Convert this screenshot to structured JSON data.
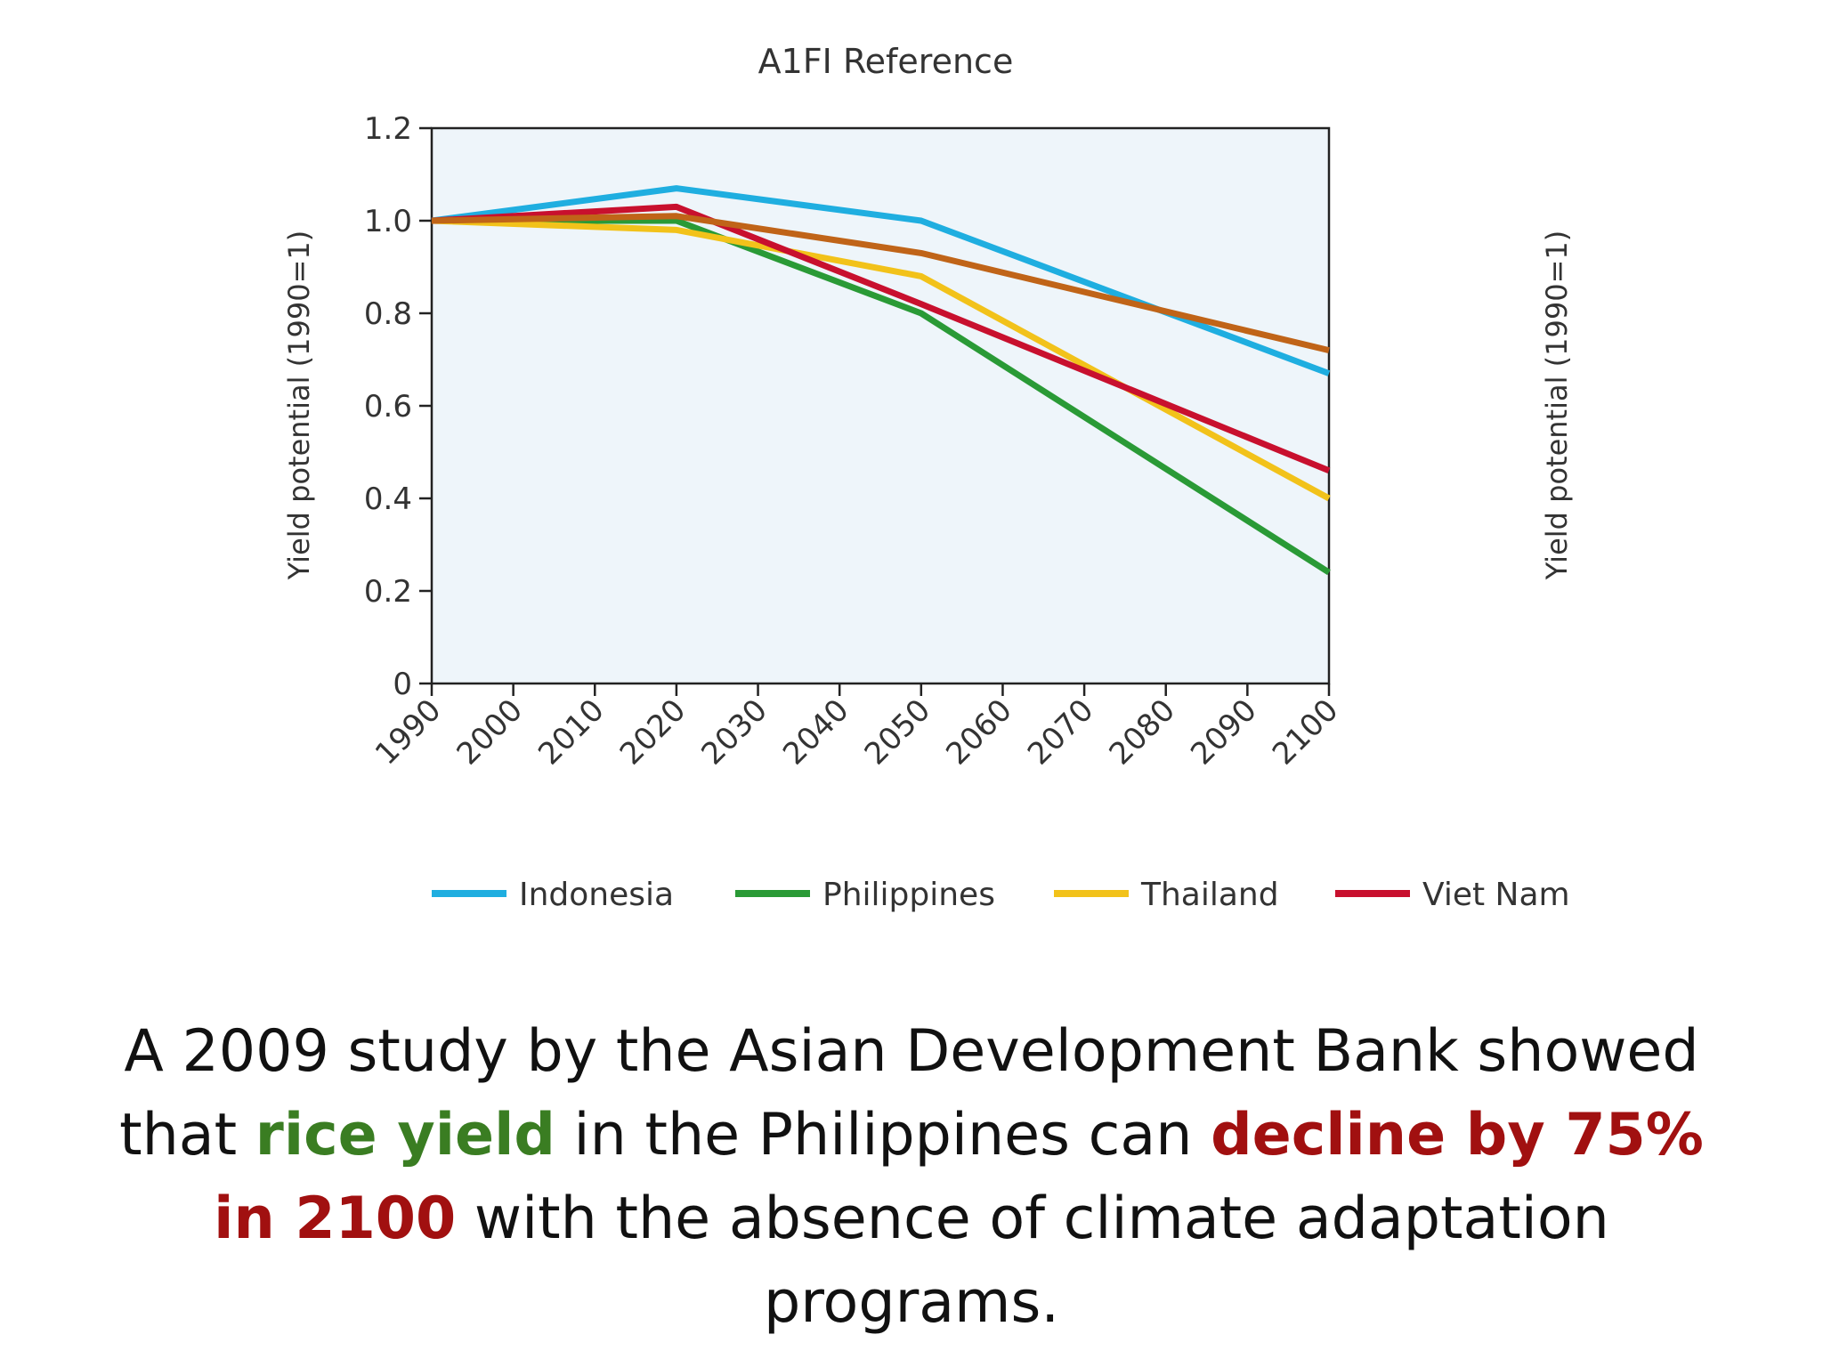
{
  "chart_data": {
    "type": "line",
    "title": "A1FI Reference",
    "ylabel": "Yield potential (1990=1)",
    "ylabel_right": "Yield potential (1990=1)",
    "xlabel": "",
    "x": [
      1990,
      2020,
      2050,
      2100
    ],
    "xticks": [
      "1990",
      "2000",
      "2010",
      "2020",
      "2030",
      "2040",
      "2050",
      "2060",
      "2070",
      "2080",
      "2090",
      "2100"
    ],
    "yticks": [
      "0",
      "0.2",
      "0.4",
      "0.6",
      "0.8",
      "1.0",
      "1.2"
    ],
    "xlim": [
      1990,
      2100
    ],
    "ylim": [
      0,
      1.2
    ],
    "grid": false,
    "legend": "bottom",
    "series": [
      {
        "name": "Indonesia",
        "color": "#1faee0",
        "values": [
          1.0,
          1.07,
          1.0,
          0.67
        ],
        "in_legend": true
      },
      {
        "name": "Philippines",
        "color": "#2a9a36",
        "values": [
          1.0,
          1.0,
          0.8,
          0.24
        ],
        "in_legend": true
      },
      {
        "name": "Thailand",
        "color": "#f2c21a",
        "values": [
          1.0,
          0.98,
          0.88,
          0.4
        ],
        "in_legend": true
      },
      {
        "name": "Viet Nam",
        "color": "#c8102e",
        "values": [
          1.0,
          1.03,
          0.82,
          0.46
        ],
        "in_legend": true
      },
      {
        "name": "",
        "color": "#c06418",
        "values": [
          1.0,
          1.01,
          0.93,
          0.72
        ],
        "in_legend": false
      }
    ],
    "plot_bg": "#eef5fa"
  },
  "caption": {
    "part1": "A 2009 study by the Asian Development Bank showed that ",
    "highlight1": "rice yield",
    "part2": " in the Philippines can ",
    "highlight2": "decline by 75% in 2100",
    "part3": " with the absence of climate adaptation programs."
  },
  "colors": {
    "highlight_green": "#3a7d22",
    "highlight_red": "#a11010"
  }
}
